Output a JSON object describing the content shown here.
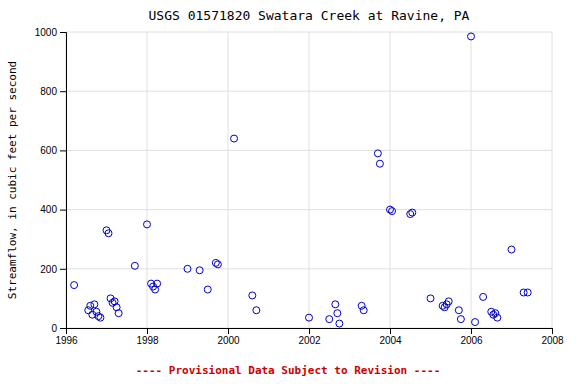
{
  "chart_data": {
    "type": "scatter",
    "title": "USGS 01571820 Swatara Creek at Ravine, PA",
    "y_label": "Streamflow, in cubic feet per second",
    "annotations": [
      {
        "text": "---- Provisional Data Subject to Revision ----",
        "color": "#cc0000"
      }
    ],
    "x": [
      1996.2,
      1996.55,
      1996.6,
      1996.65,
      1996.7,
      1996.75,
      1996.8,
      1996.85,
      1997.0,
      1997.05,
      1997.1,
      1997.15,
      1997.2,
      1997.25,
      1997.3,
      1997.7,
      1998.0,
      1998.1,
      1998.15,
      1998.2,
      1998.25,
      1999.0,
      1999.3,
      1999.5,
      1999.7,
      1999.75,
      2000.15,
      2000.6,
      2000.7,
      2002.0,
      2002.5,
      2002.65,
      2002.7,
      2002.75,
      2003.3,
      2003.35,
      2003.7,
      2003.75,
      2004.0,
      2004.05,
      2004.5,
      2004.55,
      2005.0,
      2005.3,
      2005.35,
      2005.4,
      2005.45,
      2005.7,
      2005.75,
      2006.0,
      2006.1,
      2006.3,
      2006.5,
      2006.55,
      2006.6,
      2006.65,
      2007.0,
      2007.3,
      2007.4
    ],
    "values": [
      145,
      60,
      75,
      45,
      80,
      55,
      40,
      35,
      330,
      320,
      100,
      85,
      90,
      70,
      50,
      210,
      350,
      150,
      140,
      130,
      150,
      200,
      195,
      130,
      220,
      215,
      640,
      110,
      60,
      35,
      30,
      80,
      50,
      15,
      75,
      60,
      590,
      555,
      400,
      395,
      385,
      390,
      100,
      75,
      70,
      80,
      90,
      60,
      30,
      985,
      20,
      105,
      55,
      45,
      50,
      35,
      265,
      120,
      120
    ],
    "color": "#0000cc",
    "marker": "open-circle",
    "xlim": [
      1996,
      2008
    ],
    "ylim": [
      0,
      1000
    ],
    "xticks": [
      1996,
      1998,
      2000,
      2002,
      2004,
      2006,
      2008
    ],
    "yticks": [
      0,
      200,
      400,
      600,
      800,
      1000
    ],
    "grid": true
  }
}
